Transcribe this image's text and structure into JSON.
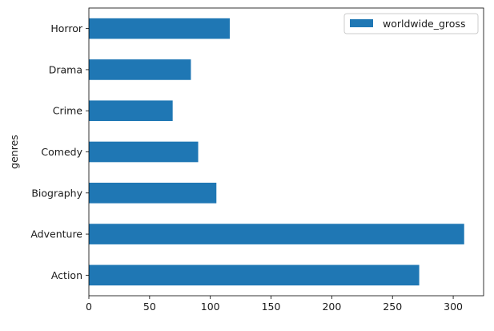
{
  "chart_data": {
    "type": "bar",
    "orientation": "horizontal",
    "categories": [
      "Action",
      "Adventure",
      "Biography",
      "Comedy",
      "Crime",
      "Drama",
      "Horror"
    ],
    "series": [
      {
        "name": "worldwide_gross",
        "values": [
          272,
          309,
          105,
          90,
          69,
          84,
          116
        ]
      }
    ],
    "title": "",
    "xlabel": "",
    "ylabel": "genres",
    "xlim": [
      0,
      325
    ],
    "xticks": [
      0,
      50,
      100,
      150,
      200,
      250,
      300
    ],
    "grid": false,
    "legend_position": "top-right",
    "bar_color": "#1f77b4"
  }
}
